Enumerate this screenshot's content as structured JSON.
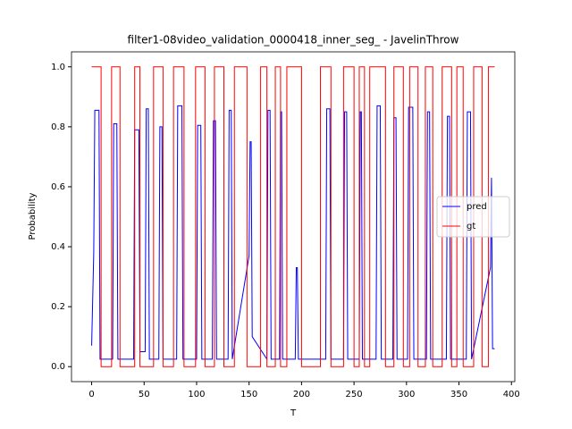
{
  "chart_data": {
    "type": "line",
    "title": "filter1-08video_validation_0000418_inner_seg_ - JavelinThrow",
    "x_label": "T",
    "y_label": "Probability",
    "xlim": [
      -19.2,
      403.2
    ],
    "ylim": [
      -0.05,
      1.05
    ],
    "xticks": [
      0,
      50,
      100,
      150,
      200,
      250,
      300,
      350,
      400
    ],
    "yticks": [
      {
        "value": 0,
        "label": "0.0"
      },
      {
        "value": 0.2,
        "label": "0.2"
      },
      {
        "value": 0.4,
        "label": "0.4"
      },
      {
        "value": 0.6,
        "label": "0.6"
      },
      {
        "value": 0.8,
        "label": "0.8"
      },
      {
        "value": 1,
        "label": "1.0"
      }
    ],
    "legend": "center right",
    "series": [
      {
        "name": "pred",
        "color": "#0000ff",
        "x": [
          0,
          2,
          3,
          7,
          8,
          20,
          21,
          24,
          25,
          40,
          41,
          45,
          46,
          51,
          52,
          54,
          55,
          64,
          65,
          67,
          68,
          81,
          82,
          86,
          87,
          100,
          101,
          104,
          105,
          115,
          116,
          118,
          119,
          130,
          131,
          133,
          134,
          150,
          151,
          152,
          153,
          167,
          168,
          170,
          171,
          179,
          180,
          181,
          182,
          194,
          195,
          196,
          197,
          223,
          224,
          227,
          228,
          240,
          241,
          243,
          244,
          255,
          256,
          257,
          258,
          271,
          272,
          275,
          276,
          287,
          288,
          290,
          291,
          301,
          302,
          306,
          307,
          319,
          320,
          322,
          323,
          338,
          339,
          341,
          342,
          357,
          358,
          361,
          362,
          380,
          381,
          382,
          384
        ],
        "values": [
          0.07,
          0.38,
          0.855,
          0.855,
          0.025,
          0.025,
          0.81,
          0.81,
          0.025,
          0.025,
          0.79,
          0.79,
          0.05,
          0.05,
          0.86,
          0.86,
          0.025,
          0.025,
          0.8,
          0.8,
          0.025,
          0.025,
          0.87,
          0.87,
          0.025,
          0.025,
          0.805,
          0.805,
          0.025,
          0.025,
          0.82,
          0.82,
          0.025,
          0.025,
          0.855,
          0.855,
          0.025,
          0.37,
          0.75,
          0.75,
          0.1,
          0.025,
          0.855,
          0.855,
          0.025,
          0.025,
          0.85,
          0.85,
          0.025,
          0.025,
          0.33,
          0.33,
          0.025,
          0.025,
          0.86,
          0.86,
          0.025,
          0.025,
          0.85,
          0.85,
          0.025,
          0.025,
          0.85,
          0.85,
          0.025,
          0.025,
          0.87,
          0.87,
          0.025,
          0.025,
          0.83,
          0.83,
          0.025,
          0.025,
          0.865,
          0.865,
          0.025,
          0.025,
          0.85,
          0.85,
          0.025,
          0.025,
          0.835,
          0.835,
          0.025,
          0.025,
          0.85,
          0.85,
          0.025,
          0.33,
          0.63,
          0.06,
          0.06
        ]
      },
      {
        "name": "gt",
        "color": "#ff0000",
        "x": [
          0,
          9,
          9,
          19,
          19,
          27,
          27,
          41,
          41,
          46,
          46,
          59,
          59,
          68,
          68,
          78,
          78,
          88,
          88,
          99,
          99,
          108,
          108,
          117,
          117,
          126,
          126,
          136,
          136,
          148,
          148,
          161,
          161,
          167,
          167,
          175,
          175,
          180,
          180,
          186,
          186,
          200,
          200,
          218,
          218,
          228,
          228,
          240,
          240,
          250,
          250,
          255,
          255,
          260,
          260,
          265,
          265,
          280,
          280,
          288,
          288,
          297,
          297,
          303,
          303,
          311,
          311,
          318,
          318,
          325,
          325,
          334,
          334,
          343,
          343,
          348,
          348,
          354,
          354,
          364,
          364,
          372,
          372,
          378,
          378,
          384
        ],
        "values": [
          1,
          1,
          0,
          0,
          1,
          1,
          0,
          0,
          1,
          1,
          0,
          0,
          1,
          1,
          0,
          0,
          1,
          1,
          0,
          0,
          1,
          1,
          0,
          0,
          1,
          1,
          0,
          0,
          1,
          1,
          0,
          0,
          1,
          1,
          0,
          0,
          1,
          1,
          0,
          0,
          1,
          1,
          0,
          0,
          1,
          1,
          0,
          0,
          1,
          1,
          0,
          0,
          1,
          1,
          0,
          0,
          1,
          1,
          0,
          0,
          1,
          1,
          0,
          0,
          1,
          1,
          0,
          0,
          1,
          1,
          0,
          0,
          1,
          1,
          0,
          0,
          1,
          1,
          0,
          0,
          1,
          1,
          0,
          0,
          1,
          1
        ]
      }
    ]
  }
}
